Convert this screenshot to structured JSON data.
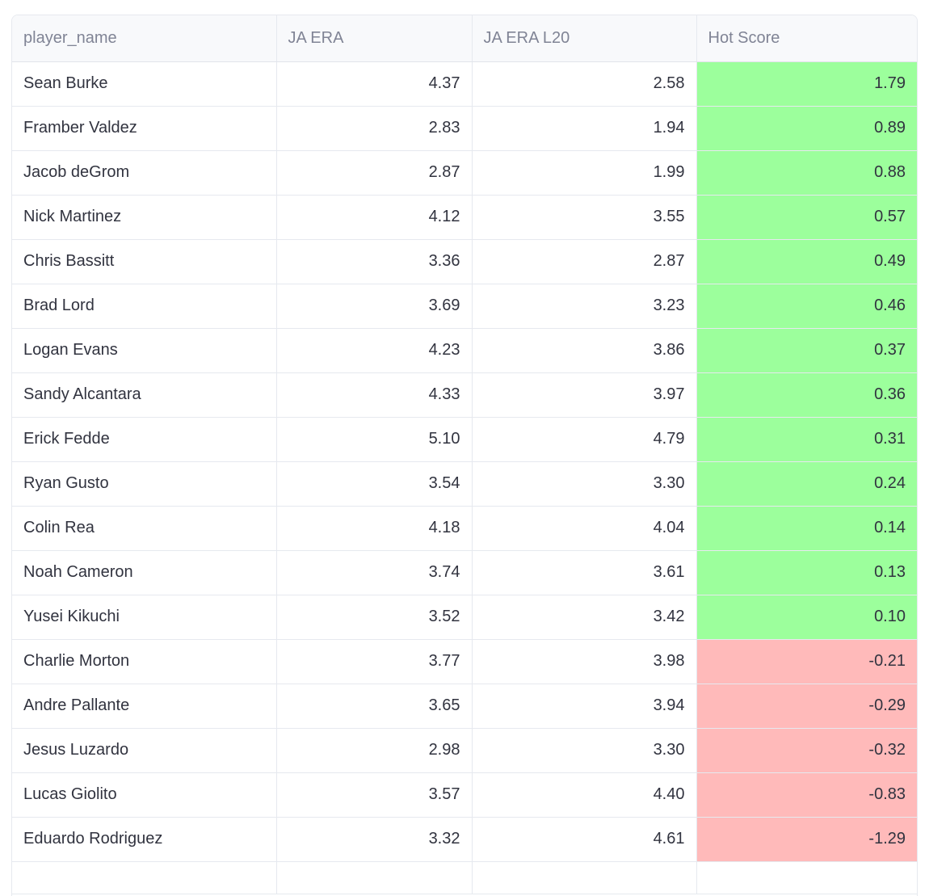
{
  "table": {
    "columns": [
      "player_name",
      "JA ERA",
      "JA ERA L20",
      "Hot Score"
    ],
    "colors": {
      "positive": "#9cff9c",
      "negative": "#ffbaba"
    },
    "rows": [
      {
        "player_name": "Sean Burke",
        "ja_era": "4.37",
        "ja_era_l20": "2.58",
        "hot_score": "1.79",
        "sign": "pos"
      },
      {
        "player_name": "Framber Valdez",
        "ja_era": "2.83",
        "ja_era_l20": "1.94",
        "hot_score": "0.89",
        "sign": "pos"
      },
      {
        "player_name": "Jacob deGrom",
        "ja_era": "2.87",
        "ja_era_l20": "1.99",
        "hot_score": "0.88",
        "sign": "pos"
      },
      {
        "player_name": "Nick Martinez",
        "ja_era": "4.12",
        "ja_era_l20": "3.55",
        "hot_score": "0.57",
        "sign": "pos"
      },
      {
        "player_name": "Chris Bassitt",
        "ja_era": "3.36",
        "ja_era_l20": "2.87",
        "hot_score": "0.49",
        "sign": "pos"
      },
      {
        "player_name": "Brad Lord",
        "ja_era": "3.69",
        "ja_era_l20": "3.23",
        "hot_score": "0.46",
        "sign": "pos"
      },
      {
        "player_name": "Logan Evans",
        "ja_era": "4.23",
        "ja_era_l20": "3.86",
        "hot_score": "0.37",
        "sign": "pos"
      },
      {
        "player_name": "Sandy Alcantara",
        "ja_era": "4.33",
        "ja_era_l20": "3.97",
        "hot_score": "0.36",
        "sign": "pos"
      },
      {
        "player_name": "Erick Fedde",
        "ja_era": "5.10",
        "ja_era_l20": "4.79",
        "hot_score": "0.31",
        "sign": "pos"
      },
      {
        "player_name": "Ryan Gusto",
        "ja_era": "3.54",
        "ja_era_l20": "3.30",
        "hot_score": "0.24",
        "sign": "pos"
      },
      {
        "player_name": "Colin Rea",
        "ja_era": "4.18",
        "ja_era_l20": "4.04",
        "hot_score": "0.14",
        "sign": "pos"
      },
      {
        "player_name": "Noah Cameron",
        "ja_era": "3.74",
        "ja_era_l20": "3.61",
        "hot_score": "0.13",
        "sign": "pos"
      },
      {
        "player_name": "Yusei Kikuchi",
        "ja_era": "3.52",
        "ja_era_l20": "3.42",
        "hot_score": "0.10",
        "sign": "pos"
      },
      {
        "player_name": "Charlie Morton",
        "ja_era": "3.77",
        "ja_era_l20": "3.98",
        "hot_score": "-0.21",
        "sign": "neg"
      },
      {
        "player_name": "Andre Pallante",
        "ja_era": "3.65",
        "ja_era_l20": "3.94",
        "hot_score": "-0.29",
        "sign": "neg"
      },
      {
        "player_name": "Jesus Luzardo",
        "ja_era": "2.98",
        "ja_era_l20": "3.30",
        "hot_score": "-0.32",
        "sign": "neg"
      },
      {
        "player_name": "Lucas Giolito",
        "ja_era": "3.57",
        "ja_era_l20": "4.40",
        "hot_score": "-0.83",
        "sign": "neg"
      },
      {
        "player_name": "Eduardo Rodriguez",
        "ja_era": "3.32",
        "ja_era_l20": "4.61",
        "hot_score": "-1.29",
        "sign": "neg"
      }
    ]
  }
}
